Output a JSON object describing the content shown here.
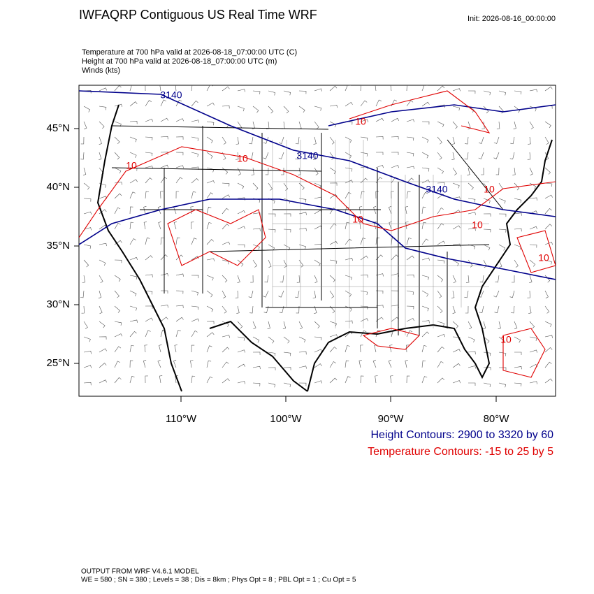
{
  "header": {
    "title": "IWFAQRP Contiguous US Real Time WRF",
    "init": "Init: 2026-08-16_00:00:00"
  },
  "subtitles": [
    "Temperature at 700 hPa valid at 2026-08-18_07:00:00 UTC   (C)",
    "Height at 700 hPa valid at 2026-08-18_07:00:00 UTC   (m)",
    "Winds   (kts)"
  ],
  "map": {
    "lat_labels": [
      "45°N",
      "40°N",
      "35°N",
      "30°N",
      "25°N"
    ],
    "lon_labels": [
      "110°W",
      "100°W",
      "90°W",
      "80°W"
    ],
    "height_contour_labels": [
      "3140",
      "3140",
      "3140"
    ],
    "temperature_contour_labels": [
      "10",
      "10",
      "10",
      "10",
      "10",
      "10",
      "10",
      "10"
    ]
  },
  "legend": [
    "Height Contours: 2900 to 3320 by 60",
    "Temperature Contours: -15 to 25 by 5"
  ],
  "footer": [
    "OUTPUT FROM WRF V4.6.1 MODEL",
    "WE = 580 ; SN = 380 ; Levels = 38 ; Dis = 8km ; Phys Opt = 8 ; PBL Opt = 1 ; Cu Opt = 5"
  ]
}
